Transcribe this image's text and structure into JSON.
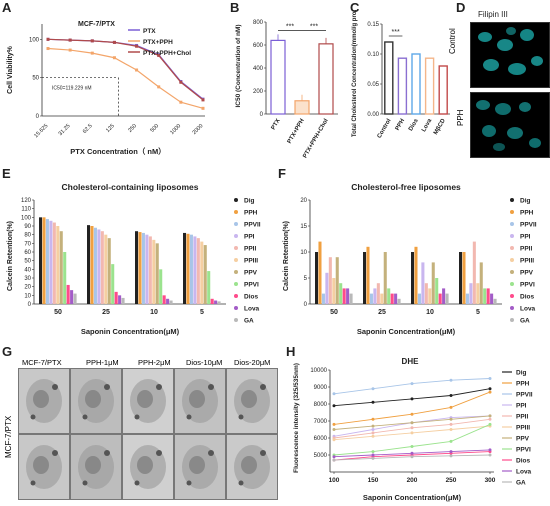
{
  "panel_labels": {
    "A": "A",
    "B": "B",
    "C": "C",
    "D": "D",
    "E": "E",
    "F": "F",
    "G": "G",
    "H": "H"
  },
  "colors": {
    "ptx": "#7b5fd6",
    "ptx_pph": "#f3a56a",
    "ptx_pph_chol": "#b04a4a",
    "dig": "#222222",
    "pph": "#f0a040",
    "ppvii": "#a8c5e8",
    "ppi": "#c9b6ef",
    "ppii": "#f2b8b0",
    "ppiii": "#f5cfa2",
    "ppv": "#c4b17c",
    "ppvi": "#9be38e",
    "dios": "#ff4b8b",
    "lova": "#a35cc7",
    "ga": "#b9b9b9",
    "control_c": "#333333",
    "pph_c": "#8a6fd1",
    "dios_c": "#5ea8e8",
    "lova_c": "#f4b68a",
    "mbcd_c": "#c24a4a"
  },
  "chart_data": [
    {
      "panel": "A",
      "type": "line",
      "title": "MCF-7/PTX",
      "xlabel": "PTX Concentration（ nM）",
      "ylabel": "Cell Viability%",
      "categories": [
        "15.625",
        "31.25",
        "62.5",
        "125",
        "250",
        "500",
        "1000",
        "2000"
      ],
      "ylim": [
        0,
        120
      ],
      "yticks": [
        "0",
        "50",
        "100"
      ],
      "annotation": "IC50=119.229 nM",
      "legend": "top-right",
      "series": [
        {
          "name": "PTX",
          "values": [
            100,
            99,
            98,
            96,
            92,
            80,
            45,
            22
          ]
        },
        {
          "name": "PTX+PPH",
          "values": [
            88,
            86,
            82,
            76,
            60,
            38,
            18,
            10
          ]
        },
        {
          "name": "PTX+PPH+Chol",
          "values": [
            100,
            99,
            98,
            96,
            91,
            79,
            44,
            21
          ]
        }
      ]
    },
    {
      "panel": "B",
      "type": "bar",
      "ylabel": "IC50 (Concentration of nM)",
      "categories": [
        "PTX",
        "PTX+PPH",
        "PTX+PPH+Chol"
      ],
      "values": [
        640,
        115,
        610
      ],
      "ylim": [
        0,
        800
      ],
      "yticks": [
        "0",
        "200",
        "400",
        "600",
        "800"
      ],
      "significance": [
        "***",
        "***"
      ]
    },
    {
      "panel": "C",
      "type": "bar",
      "ylabel": "Total Cholesterol Concentration(mmol/g protein)",
      "categories": [
        "Control",
        "PPH",
        "Dios",
        "Lova",
        "MβCD"
      ],
      "values": [
        0.12,
        0.093,
        0.1,
        0.093,
        0.08
      ],
      "ylim": [
        0,
        0.15
      ],
      "yticks": [
        "0.00",
        "0.05",
        "0.10",
        "0.15"
      ],
      "significance": [
        "***"
      ]
    },
    {
      "panel": "E",
      "type": "bar",
      "title": "Cholesterol-containing liposomes",
      "xlabel": "Saponin Concentration(μM)",
      "ylabel": "Calcein Retention(%)",
      "categories": [
        "50",
        "25",
        "10",
        "5"
      ],
      "ylim": [
        0,
        120
      ],
      "yticks": [
        "0",
        "10",
        "20",
        "30",
        "40",
        "50",
        "60",
        "70",
        "80",
        "90",
        "100",
        "110",
        "120"
      ],
      "legend": "right",
      "series": [
        {
          "name": "Dig",
          "values": [
            100,
            91,
            84,
            82
          ]
        },
        {
          "name": "PPH",
          "values": [
            100,
            90,
            83,
            81
          ]
        },
        {
          "name": "PPVII",
          "values": [
            98,
            88,
            82,
            80
          ]
        },
        {
          "name": "PPI",
          "values": [
            96,
            86,
            80,
            78
          ]
        },
        {
          "name": "PPII",
          "values": [
            94,
            84,
            78,
            76
          ]
        },
        {
          "name": "PPIII",
          "values": [
            90,
            80,
            74,
            72
          ]
        },
        {
          "name": "PPV",
          "values": [
            84,
            76,
            70,
            68
          ]
        },
        {
          "name": "PPVI",
          "values": [
            60,
            46,
            40,
            38
          ]
        },
        {
          "name": "Dios",
          "values": [
            22,
            14,
            10,
            6
          ]
        },
        {
          "name": "Lova",
          "values": [
            16,
            10,
            6,
            4
          ]
        },
        {
          "name": "GA",
          "values": [
            12,
            7,
            4,
            3
          ]
        }
      ]
    },
    {
      "panel": "F",
      "type": "bar",
      "title": "Cholesterol-free liposomes",
      "xlabel": "Saponin Concentration(μM)",
      "ylabel": "Calcein Retention(%)",
      "categories": [
        "50",
        "25",
        "10",
        "5"
      ],
      "ylim": [
        0,
        20
      ],
      "yticks": [
        "0",
        "5",
        "10",
        "15",
        "20"
      ],
      "legend": "right",
      "series": [
        {
          "name": "Dig",
          "values": [
            10,
            10,
            10,
            10
          ]
        },
        {
          "name": "PPH",
          "values": [
            12,
            11,
            11,
            10
          ]
        },
        {
          "name": "PPVII",
          "values": [
            2,
            2,
            2,
            2
          ]
        },
        {
          "name": "PPI",
          "values": [
            6,
            3,
            8,
            4
          ]
        },
        {
          "name": "PPII",
          "values": [
            9,
            4,
            4,
            12
          ]
        },
        {
          "name": "PPIII",
          "values": [
            5,
            2,
            3,
            4
          ]
        },
        {
          "name": "PPV",
          "values": [
            9,
            10,
            8,
            8
          ]
        },
        {
          "name": "PPVI",
          "values": [
            4,
            3,
            5,
            3
          ]
        },
        {
          "name": "Dios",
          "values": [
            3,
            2,
            2,
            3
          ]
        },
        {
          "name": "Lova",
          "values": [
            3,
            2,
            3,
            2
          ]
        },
        {
          "name": "GA",
          "values": [
            2,
            1,
            2,
            1
          ]
        }
      ]
    },
    {
      "panel": "H",
      "type": "line",
      "title": "DHE",
      "xlabel": "Saponin Concentration(μM)",
      "ylabel": "Fluorescence intensity (325/535nm)",
      "x": [
        100,
        150,
        200,
        250,
        300
      ],
      "ylim": [
        4000,
        10000
      ],
      "yticks": [
        "5000",
        "6000",
        "7000",
        "8000",
        "9000",
        "10000"
      ],
      "legend": "right",
      "series": [
        {
          "name": "Dig",
          "values": [
            7900,
            8100,
            8300,
            8500,
            8900
          ]
        },
        {
          "name": "PPH",
          "values": [
            6800,
            7100,
            7400,
            7800,
            8700
          ]
        },
        {
          "name": "PPVII",
          "values": [
            8600,
            8900,
            9200,
            9400,
            9500
          ]
        },
        {
          "name": "PPI",
          "values": [
            6100,
            6500,
            6900,
            7200,
            7300
          ]
        },
        {
          "name": "PPII",
          "values": [
            6000,
            6300,
            6600,
            6800,
            7100
          ]
        },
        {
          "name": "PPIII",
          "values": [
            5900,
            6100,
            6300,
            6500,
            6700
          ]
        },
        {
          "name": "PPV",
          "values": [
            6500,
            6700,
            6900,
            7100,
            7300
          ]
        },
        {
          "name": "PPVI",
          "values": [
            5000,
            5200,
            5500,
            5800,
            6800
          ]
        },
        {
          "name": "Dios",
          "values": [
            4700,
            4900,
            5000,
            5100,
            5200
          ]
        },
        {
          "name": "Lova",
          "values": [
            4900,
            5000,
            5100,
            5200,
            5300
          ]
        },
        {
          "name": "GA",
          "values": [
            4700,
            4800,
            4900,
            4950,
            5000
          ]
        }
      ]
    }
  ],
  "panel_d": {
    "title": "Filipin III",
    "rows": [
      "Control",
      "PPH"
    ]
  },
  "panel_g": {
    "columns": [
      "MCF-7/PTX",
      "PPH-1μM",
      "PPH-2μM",
      "Dios-10μM",
      "Dios-20μM"
    ],
    "row_label": "MCF-7/PTX"
  }
}
